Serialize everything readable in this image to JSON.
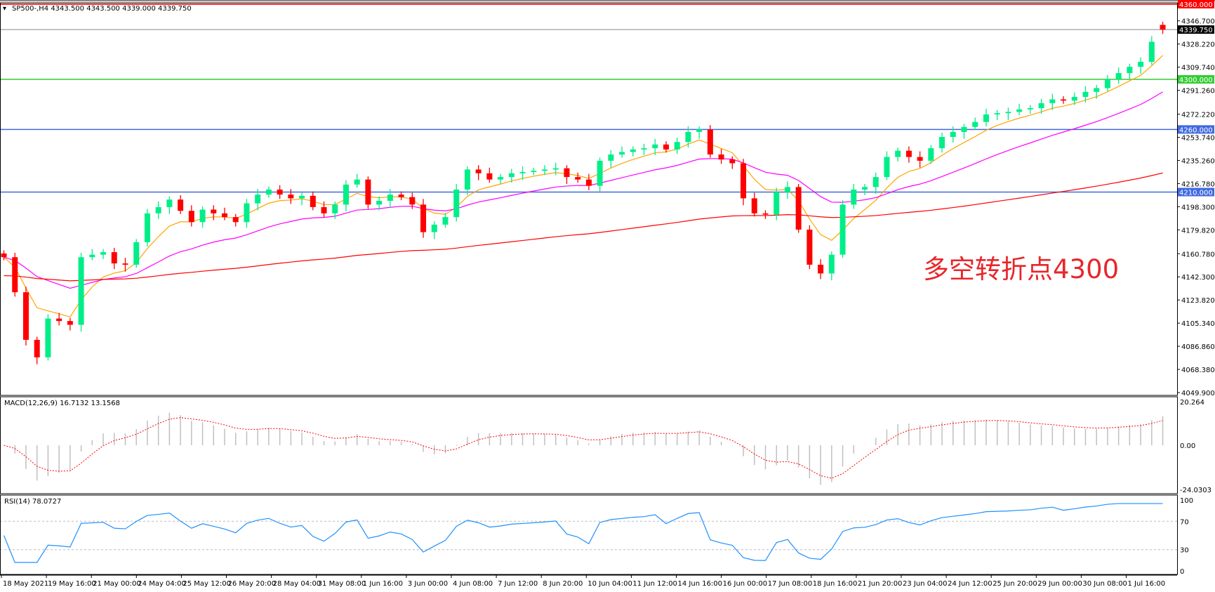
{
  "header": {
    "symbol_info": "SP500-,H4  4343.500 4343.500 4339.000 4339.750"
  },
  "annotation": "多空转折点4300",
  "colors": {
    "bull": "#00ee88",
    "bear": "#ff0000",
    "ma_fast": "#ffa500",
    "ma_mid": "#ff00ff",
    "ma_slow": "#ff0000",
    "level_green": "#33cc33",
    "level_blue": "#4169e1",
    "level_red": "#ff0000",
    "macd_hist": "#c0c0c0",
    "macd_signal": "#ff0000",
    "rsi": "#1e90ff"
  },
  "price_axis": {
    "ticks": [
      "4346.700",
      "4328.220",
      "4309.740",
      "4291.260",
      "4272.220",
      "4253.740",
      "4235.260",
      "4216.780",
      "4198.300",
      "4179.820",
      "4160.780",
      "4142.300",
      "4123.820",
      "4105.340",
      "4086.860",
      "4068.380",
      "4049.900"
    ],
    "levels": [
      {
        "label": "4360.000",
        "value": 4360,
        "color": "#ff0000"
      },
      {
        "label": "4339.750",
        "value": 4339.75,
        "color": "#000000"
      },
      {
        "label": "4300.000",
        "value": 4300,
        "color": "#33cc33"
      },
      {
        "label": "4260.000",
        "value": 4260,
        "color": "#4169e1"
      },
      {
        "label": "4210.000",
        "value": 4210,
        "color": "#4169e1"
      }
    ]
  },
  "macd": {
    "title": "MACD(12,26,9) 16.7132 13.1568",
    "ticks": [
      "20.264",
      "0.00",
      "-24.0303"
    ]
  },
  "rsi": {
    "title": "RSI(14) 78.0727",
    "ticks": [
      "100",
      "70",
      "30",
      "0"
    ]
  },
  "chart_data": {
    "type": "candlestick",
    "symbol": "SP500-",
    "timeframe": "H4",
    "ylim": [
      4049.9,
      4360
    ],
    "x_tick_labels": [
      "18 May 2021",
      "19 May 16:00",
      "21 May 00:00",
      "24 May 04:00",
      "25 May 12:00",
      "26 May 20:00",
      "28 May 04:00",
      "31 May 08:00",
      "1 Jun 16:00",
      "3 Jun 00:00",
      "4 Jun 08:00",
      "7 Jun 12:00",
      "8 Jun 20:00",
      "10 Jun 04:00",
      "11 Jun 12:00",
      "14 Jun 16:00",
      "16 Jun 00:00",
      "17 Jun 08:00",
      "18 Jun 16:00",
      "21 Jun 20:00",
      "23 Jun 04:00",
      "24 Jun 12:00",
      "25 Jun 20:00",
      "29 Jun 00:00",
      "30 Jun 08:00",
      "1 Jul 16:00"
    ],
    "closes": [
      4158,
      4130,
      4092,
      4078,
      4109,
      4107,
      4104,
      4158,
      4160,
      4162,
      4153,
      4152,
      4170,
      4193,
      4198,
      4204,
      4195,
      4186,
      4196,
      4193,
      4190,
      4186,
      4201,
      4208,
      4212,
      4208,
      4205,
      4207,
      4198,
      4193,
      4200,
      4216,
      4220,
      4200,
      4203,
      4208,
      4206,
      4200,
      4178,
      4184,
      4190,
      4212,
      4228,
      4225,
      4220,
      4222,
      4225,
      4226,
      4227,
      4228,
      4229,
      4222,
      4220,
      4215,
      4235,
      4240,
      4242,
      4244,
      4245,
      4248,
      4244,
      4250,
      4258,
      4260,
      4240,
      4236,
      4233,
      4205,
      4193,
      4192,
      4210,
      4214,
      4180,
      4152,
      4145,
      4160,
      4200,
      4212,
      4214,
      4222,
      4238,
      4243,
      4238,
      4235,
      4245,
      4254,
      4258,
      4262,
      4266,
      4272,
      4273,
      4274,
      4276,
      4277,
      4281,
      4284,
      4283,
      4286,
      4290,
      4293,
      4300,
      4305,
      4310,
      4314,
      4330,
      4339.75
    ],
    "last_bar": {
      "open": 4343.5,
      "high": 4343.5,
      "low": 4339.0,
      "close": 4339.75
    }
  }
}
